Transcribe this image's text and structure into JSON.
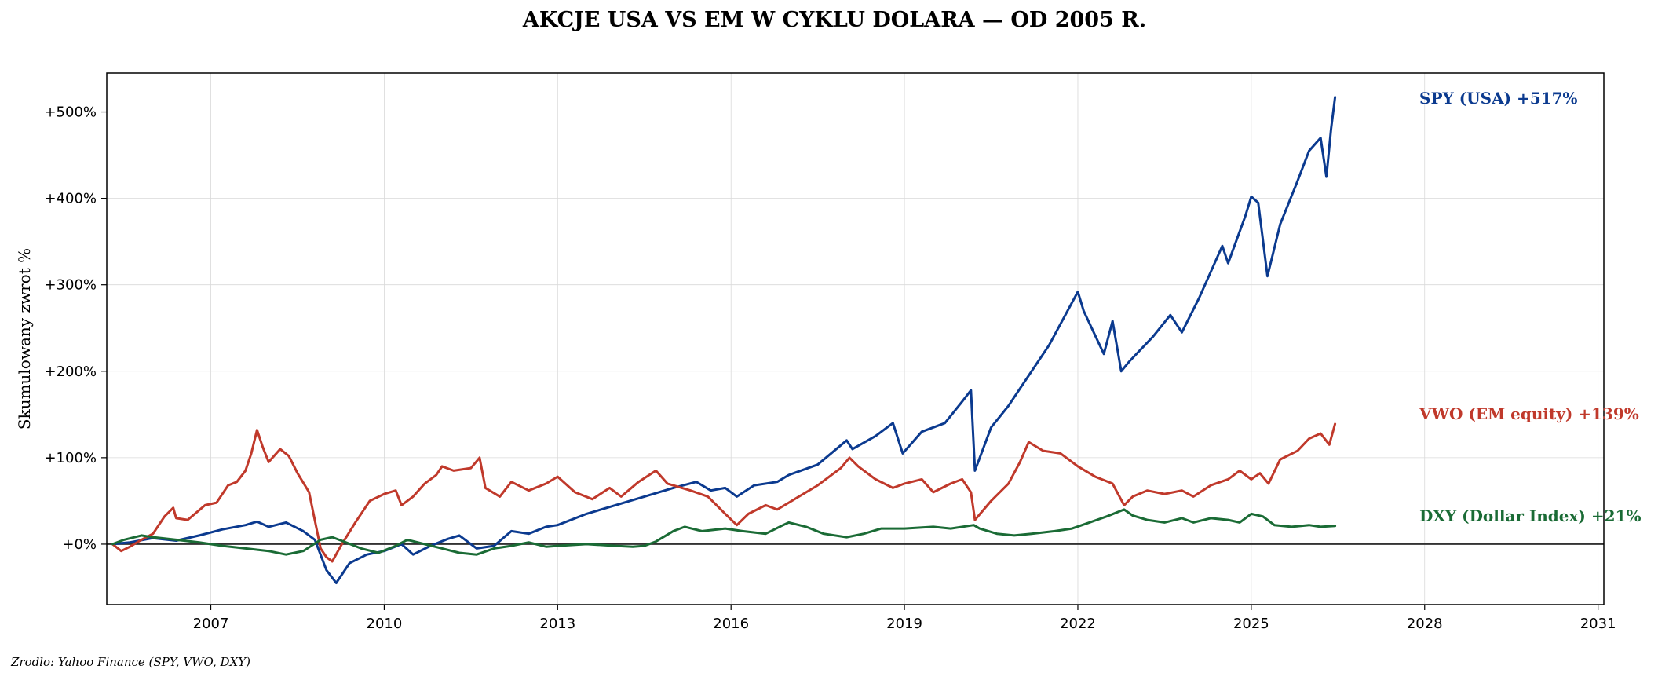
{
  "chart_data": {
    "type": "line",
    "title": "AKCJE USA VS EM W CYKLU DOLARA — OD 2005 R.",
    "ylabel": "Skumulowany zwrot %",
    "xlim": [
      2005.2,
      2031.1
    ],
    "ylim": [
      -70,
      545
    ],
    "x_ticks": [
      2007,
      2010,
      2013,
      2016,
      2019,
      2022,
      2025,
      2028,
      2031
    ],
    "x_tick_labels": [
      "2007",
      "2010",
      "2013",
      "2016",
      "2019",
      "2022",
      "2025",
      "2028",
      "2031"
    ],
    "y_ticks": [
      0,
      100,
      200,
      300,
      400,
      500
    ],
    "y_tick_labels": [
      "+0%",
      "+100%",
      "+200%",
      "+300%",
      "+400%",
      "+500%"
    ],
    "grid": true,
    "zero_line": true,
    "series": [
      {
        "name": "SPY (USA)",
        "color": "#0b3a8f",
        "end_label": "SPY (USA)  +517%",
        "points": [
          [
            2005.3,
            0
          ],
          [
            2005.6,
            2
          ],
          [
            2006.0,
            7
          ],
          [
            2006.4,
            4
          ],
          [
            2006.8,
            10
          ],
          [
            2007.2,
            17
          ],
          [
            2007.6,
            22
          ],
          [
            2007.8,
            26
          ],
          [
            2008.0,
            20
          ],
          [
            2008.3,
            25
          ],
          [
            2008.6,
            15
          ],
          [
            2008.8,
            5
          ],
          [
            2009.0,
            -30
          ],
          [
            2009.17,
            -45
          ],
          [
            2009.4,
            -22
          ],
          [
            2009.7,
            -12
          ],
          [
            2010.0,
            -8
          ],
          [
            2010.3,
            0
          ],
          [
            2010.5,
            -12
          ],
          [
            2010.8,
            -2
          ],
          [
            2011.1,
            6
          ],
          [
            2011.3,
            10
          ],
          [
            2011.6,
            -5
          ],
          [
            2011.9,
            -2
          ],
          [
            2012.2,
            15
          ],
          [
            2012.5,
            12
          ],
          [
            2012.8,
            20
          ],
          [
            2013.0,
            22
          ],
          [
            2013.5,
            35
          ],
          [
            2014.0,
            45
          ],
          [
            2014.5,
            55
          ],
          [
            2015.0,
            65
          ],
          [
            2015.4,
            72
          ],
          [
            2015.65,
            62
          ],
          [
            2015.9,
            65
          ],
          [
            2016.1,
            55
          ],
          [
            2016.4,
            68
          ],
          [
            2016.8,
            72
          ],
          [
            2017.0,
            80
          ],
          [
            2017.5,
            92
          ],
          [
            2018.0,
            120
          ],
          [
            2018.1,
            110
          ],
          [
            2018.5,
            125
          ],
          [
            2018.8,
            140
          ],
          [
            2018.97,
            105
          ],
          [
            2019.3,
            130
          ],
          [
            2019.7,
            140
          ],
          [
            2020.0,
            165
          ],
          [
            2020.15,
            178
          ],
          [
            2020.22,
            85
          ],
          [
            2020.5,
            135
          ],
          [
            2020.8,
            160
          ],
          [
            2021.0,
            180
          ],
          [
            2021.5,
            230
          ],
          [
            2022.0,
            292
          ],
          [
            2022.1,
            270
          ],
          [
            2022.45,
            220
          ],
          [
            2022.6,
            258
          ],
          [
            2022.75,
            200
          ],
          [
            2022.9,
            212
          ],
          [
            2023.3,
            240
          ],
          [
            2023.6,
            265
          ],
          [
            2023.8,
            245
          ],
          [
            2024.1,
            285
          ],
          [
            2024.5,
            345
          ],
          [
            2024.6,
            325
          ],
          [
            2024.9,
            380
          ],
          [
            2025.0,
            402
          ],
          [
            2025.12,
            395
          ],
          [
            2025.28,
            310
          ],
          [
            2025.5,
            370
          ],
          [
            2025.8,
            420
          ],
          [
            2026.0,
            455
          ],
          [
            2026.2,
            470
          ],
          [
            2026.3,
            425
          ],
          [
            2026.38,
            480
          ],
          [
            2026.45,
            517
          ]
        ]
      },
      {
        "name": "VWO (EM equity)",
        "color": "#c0392b",
        "end_label": "VWO (EM equity)  +139%",
        "points": [
          [
            2005.3,
            0
          ],
          [
            2005.45,
            -8
          ],
          [
            2005.6,
            -3
          ],
          [
            2005.8,
            5
          ],
          [
            2006.0,
            12
          ],
          [
            2006.2,
            32
          ],
          [
            2006.35,
            42
          ],
          [
            2006.4,
            30
          ],
          [
            2006.6,
            28
          ],
          [
            2006.9,
            45
          ],
          [
            2007.1,
            48
          ],
          [
            2007.3,
            68
          ],
          [
            2007.45,
            72
          ],
          [
            2007.6,
            85
          ],
          [
            2007.7,
            105
          ],
          [
            2007.8,
            132
          ],
          [
            2007.9,
            112
          ],
          [
            2008.0,
            95
          ],
          [
            2008.2,
            110
          ],
          [
            2008.35,
            102
          ],
          [
            2008.5,
            82
          ],
          [
            2008.7,
            60
          ],
          [
            2008.9,
            -5
          ],
          [
            2009.0,
            -15
          ],
          [
            2009.1,
            -20
          ],
          [
            2009.25,
            -2
          ],
          [
            2009.5,
            25
          ],
          [
            2009.75,
            50
          ],
          [
            2010.0,
            58
          ],
          [
            2010.2,
            62
          ],
          [
            2010.3,
            45
          ],
          [
            2010.5,
            55
          ],
          [
            2010.7,
            70
          ],
          [
            2010.9,
            80
          ],
          [
            2011.0,
            90
          ],
          [
            2011.2,
            85
          ],
          [
            2011.5,
            88
          ],
          [
            2011.65,
            100
          ],
          [
            2011.75,
            65
          ],
          [
            2012.0,
            55
          ],
          [
            2012.2,
            72
          ],
          [
            2012.5,
            62
          ],
          [
            2012.8,
            70
          ],
          [
            2013.0,
            78
          ],
          [
            2013.3,
            60
          ],
          [
            2013.6,
            52
          ],
          [
            2013.9,
            65
          ],
          [
            2014.1,
            55
          ],
          [
            2014.4,
            72
          ],
          [
            2014.7,
            85
          ],
          [
            2014.9,
            70
          ],
          [
            2015.3,
            62
          ],
          [
            2015.6,
            55
          ],
          [
            2015.75,
            45
          ],
          [
            2015.9,
            35
          ],
          [
            2016.1,
            22
          ],
          [
            2016.3,
            35
          ],
          [
            2016.6,
            45
          ],
          [
            2016.8,
            40
          ],
          [
            2017.0,
            48
          ],
          [
            2017.5,
            68
          ],
          [
            2017.9,
            88
          ],
          [
            2018.05,
            100
          ],
          [
            2018.2,
            90
          ],
          [
            2018.5,
            75
          ],
          [
            2018.8,
            65
          ],
          [
            2019.0,
            70
          ],
          [
            2019.3,
            75
          ],
          [
            2019.5,
            60
          ],
          [
            2019.8,
            70
          ],
          [
            2020.0,
            75
          ],
          [
            2020.15,
            60
          ],
          [
            2020.22,
            28
          ],
          [
            2020.5,
            50
          ],
          [
            2020.8,
            70
          ],
          [
            2021.0,
            95
          ],
          [
            2021.15,
            118
          ],
          [
            2021.4,
            108
          ],
          [
            2021.7,
            105
          ],
          [
            2022.0,
            90
          ],
          [
            2022.3,
            78
          ],
          [
            2022.6,
            70
          ],
          [
            2022.8,
            45
          ],
          [
            2022.95,
            55
          ],
          [
            2023.2,
            62
          ],
          [
            2023.5,
            58
          ],
          [
            2023.8,
            62
          ],
          [
            2024.0,
            55
          ],
          [
            2024.3,
            68
          ],
          [
            2024.6,
            75
          ],
          [
            2024.8,
            85
          ],
          [
            2025.0,
            75
          ],
          [
            2025.15,
            82
          ],
          [
            2025.3,
            70
          ],
          [
            2025.5,
            98
          ],
          [
            2025.8,
            108
          ],
          [
            2026.0,
            122
          ],
          [
            2026.2,
            128
          ],
          [
            2026.35,
            115
          ],
          [
            2026.45,
            139
          ]
        ]
      },
      {
        "name": "DXY (Dollar Index)",
        "color": "#1a6b35",
        "end_label": "DXY (Dollar Index)  +21%",
        "points": [
          [
            2005.3,
            0
          ],
          [
            2005.5,
            5
          ],
          [
            2005.8,
            10
          ],
          [
            2006.0,
            8
          ],
          [
            2006.4,
            5
          ],
          [
            2006.8,
            2
          ],
          [
            2007.2,
            -2
          ],
          [
            2007.6,
            -5
          ],
          [
            2008.0,
            -8
          ],
          [
            2008.3,
            -12
          ],
          [
            2008.6,
            -8
          ],
          [
            2008.9,
            5
          ],
          [
            2009.1,
            8
          ],
          [
            2009.3,
            3
          ],
          [
            2009.6,
            -5
          ],
          [
            2009.9,
            -10
          ],
          [
            2010.2,
            -2
          ],
          [
            2010.4,
            5
          ],
          [
            2010.7,
            0
          ],
          [
            2011.0,
            -5
          ],
          [
            2011.3,
            -10
          ],
          [
            2011.6,
            -12
          ],
          [
            2011.9,
            -5
          ],
          [
            2012.2,
            -2
          ],
          [
            2012.5,
            2
          ],
          [
            2012.8,
            -3
          ],
          [
            2013.0,
            -2
          ],
          [
            2013.5,
            0
          ],
          [
            2014.0,
            -2
          ],
          [
            2014.3,
            -3
          ],
          [
            2014.5,
            -2
          ],
          [
            2014.7,
            3
          ],
          [
            2015.0,
            15
          ],
          [
            2015.2,
            20
          ],
          [
            2015.5,
            15
          ],
          [
            2015.9,
            18
          ],
          [
            2016.2,
            15
          ],
          [
            2016.6,
            12
          ],
          [
            2016.9,
            22
          ],
          [
            2017.0,
            25
          ],
          [
            2017.3,
            20
          ],
          [
            2017.6,
            12
          ],
          [
            2018.0,
            8
          ],
          [
            2018.3,
            12
          ],
          [
            2018.6,
            18
          ],
          [
            2019.0,
            18
          ],
          [
            2019.5,
            20
          ],
          [
            2019.8,
            18
          ],
          [
            2020.2,
            22
          ],
          [
            2020.3,
            18
          ],
          [
            2020.6,
            12
          ],
          [
            2020.9,
            10
          ],
          [
            2021.2,
            12
          ],
          [
            2021.6,
            15
          ],
          [
            2021.9,
            18
          ],
          [
            2022.2,
            25
          ],
          [
            2022.5,
            32
          ],
          [
            2022.8,
            40
          ],
          [
            2022.95,
            33
          ],
          [
            2023.2,
            28
          ],
          [
            2023.5,
            25
          ],
          [
            2023.8,
            30
          ],
          [
            2024.0,
            25
          ],
          [
            2024.3,
            30
          ],
          [
            2024.6,
            28
          ],
          [
            2024.8,
            25
          ],
          [
            2025.0,
            35
          ],
          [
            2025.2,
            32
          ],
          [
            2025.4,
            22
          ],
          [
            2025.7,
            20
          ],
          [
            2026.0,
            22
          ],
          [
            2026.2,
            20
          ],
          [
            2026.45,
            21
          ]
        ]
      }
    ],
    "source_note": "Zrodlo: Yahoo Finance (SPY, VWO, DXY)"
  }
}
